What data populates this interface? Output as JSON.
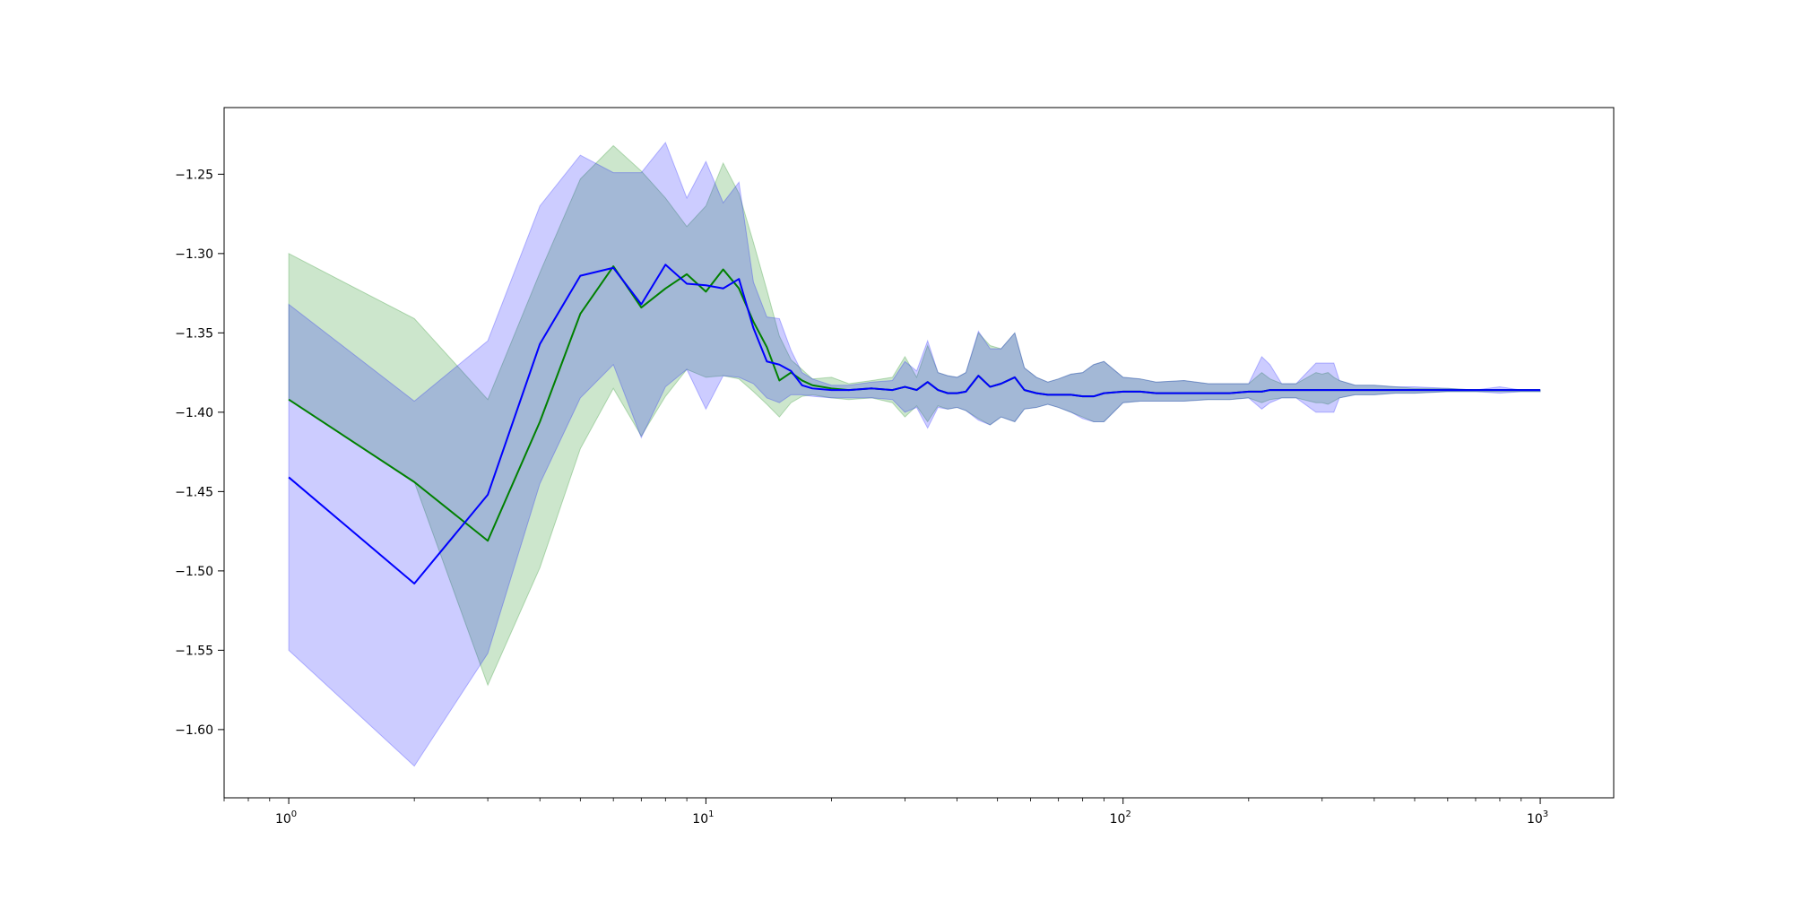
{
  "chart_data": {
    "type": "line",
    "title": "",
    "xlabel": "",
    "ylabel": "",
    "xscale": "log",
    "xlim": [
      0.7,
      1500
    ],
    "ylim": [
      -1.643,
      -1.208
    ],
    "grid": false,
    "legend": "none",
    "x_ticks": [
      {
        "value": 1,
        "base": "10",
        "exp": "0"
      },
      {
        "value": 10,
        "base": "10",
        "exp": "1"
      },
      {
        "value": 100,
        "base": "10",
        "exp": "2"
      },
      {
        "value": 1000,
        "base": "10",
        "exp": "3"
      }
    ],
    "y_ticks": [
      {
        "value": -1.25,
        "label": "−1.25"
      },
      {
        "value": -1.3,
        "label": "−1.30"
      },
      {
        "value": -1.35,
        "label": "−1.35"
      },
      {
        "value": -1.4,
        "label": "−1.40"
      },
      {
        "value": -1.45,
        "label": "−1.45"
      },
      {
        "value": -1.5,
        "label": "−1.50"
      },
      {
        "value": -1.55,
        "label": "−1.55"
      },
      {
        "value": -1.6,
        "label": "−1.60"
      }
    ],
    "series": [
      {
        "color": "#008000",
        "band_color": "#008000",
        "band_opacity": 0.2,
        "x": [
          1,
          2,
          3,
          4,
          5,
          6,
          7,
          8,
          9,
          10,
          11,
          12,
          13,
          14,
          15,
          16,
          17,
          18,
          20,
          22,
          25,
          28,
          30,
          32,
          34,
          36,
          38,
          40,
          42,
          45,
          48,
          51,
          55,
          58,
          62,
          66,
          70,
          75,
          80,
          85,
          90,
          100,
          110,
          120,
          140,
          160,
          180,
          200,
          215,
          225,
          240,
          260,
          290,
          300,
          310,
          320,
          330,
          360,
          400,
          450,
          500,
          600,
          700,
          800,
          900,
          1000
        ],
        "y": [
          -1.392,
          -1.444,
          -1.481,
          -1.406,
          -1.338,
          -1.308,
          -1.334,
          -1.322,
          -1.313,
          -1.324,
          -1.31,
          -1.322,
          -1.343,
          -1.359,
          -1.38,
          -1.375,
          -1.38,
          -1.383,
          -1.385,
          -1.386,
          -1.385,
          -1.386,
          -1.384,
          -1.386,
          -1.381,
          -1.386,
          -1.388,
          -1.388,
          -1.387,
          -1.377,
          -1.384,
          -1.382,
          -1.378,
          -1.386,
          -1.388,
          -1.389,
          -1.389,
          -1.389,
          -1.39,
          -1.39,
          -1.388,
          -1.387,
          -1.387,
          -1.388,
          -1.388,
          -1.388,
          -1.388,
          -1.387,
          -1.387,
          -1.386,
          -1.386,
          -1.386,
          -1.386,
          -1.386,
          -1.386,
          -1.386,
          -1.386,
          -1.386,
          -1.386,
          -1.386,
          -1.386,
          -1.386,
          -1.386,
          -1.386,
          -1.386,
          -1.386
        ],
        "upper": [
          -1.3,
          -1.341,
          -1.392,
          -1.312,
          -1.253,
          -1.232,
          -1.248,
          -1.265,
          -1.283,
          -1.27,
          -1.243,
          -1.262,
          -1.293,
          -1.323,
          -1.352,
          -1.367,
          -1.373,
          -1.379,
          -1.378,
          -1.382,
          -1.38,
          -1.378,
          -1.365,
          -1.378,
          -1.358,
          -1.375,
          -1.377,
          -1.378,
          -1.375,
          -1.35,
          -1.358,
          -1.36,
          -1.35,
          -1.372,
          -1.378,
          -1.381,
          -1.379,
          -1.376,
          -1.375,
          -1.37,
          -1.368,
          -1.378,
          -1.379,
          -1.381,
          -1.38,
          -1.382,
          -1.382,
          -1.382,
          -1.375,
          -1.379,
          -1.382,
          -1.382,
          -1.375,
          -1.376,
          -1.375,
          -1.378,
          -1.38,
          -1.383,
          -1.383,
          -1.384,
          -1.385,
          -1.385,
          -1.386,
          -1.386,
          -1.386,
          -1.386
        ],
        "lower": [
          -1.392,
          -1.444,
          -1.572,
          -1.498,
          -1.423,
          -1.385,
          -1.415,
          -1.39,
          -1.373,
          -1.378,
          -1.377,
          -1.379,
          -1.387,
          -1.395,
          -1.403,
          -1.394,
          -1.39,
          -1.389,
          -1.391,
          -1.392,
          -1.391,
          -1.394,
          -1.403,
          -1.396,
          -1.406,
          -1.396,
          -1.398,
          -1.397,
          -1.399,
          -1.404,
          -1.408,
          -1.403,
          -1.406,
          -1.398,
          -1.397,
          -1.395,
          -1.397,
          -1.4,
          -1.403,
          -1.406,
          -1.406,
          -1.394,
          -1.393,
          -1.393,
          -1.393,
          -1.392,
          -1.392,
          -1.391,
          -1.394,
          -1.392,
          -1.391,
          -1.391,
          -1.394,
          -1.394,
          -1.395,
          -1.393,
          -1.391,
          -1.389,
          -1.389,
          -1.388,
          -1.388,
          -1.387,
          -1.387,
          -1.387,
          -1.387,
          -1.387
        ]
      },
      {
        "color": "#0000ff",
        "band_color": "#0000ff",
        "band_opacity": 0.2,
        "x": [
          1,
          2,
          3,
          4,
          5,
          6,
          7,
          8,
          9,
          10,
          11,
          12,
          13,
          14,
          15,
          16,
          17,
          18,
          20,
          22,
          25,
          28,
          30,
          32,
          34,
          36,
          38,
          40,
          42,
          45,
          48,
          51,
          55,
          58,
          62,
          66,
          70,
          75,
          80,
          85,
          90,
          100,
          110,
          120,
          140,
          160,
          180,
          200,
          215,
          225,
          240,
          260,
          290,
          300,
          310,
          320,
          330,
          360,
          400,
          450,
          500,
          600,
          700,
          800,
          900,
          1000
        ],
        "y": [
          -1.441,
          -1.508,
          -1.452,
          -1.357,
          -1.314,
          -1.309,
          -1.332,
          -1.307,
          -1.319,
          -1.32,
          -1.322,
          -1.316,
          -1.347,
          -1.368,
          -1.37,
          -1.374,
          -1.383,
          -1.385,
          -1.386,
          -1.386,
          -1.385,
          -1.386,
          -1.384,
          -1.386,
          -1.381,
          -1.386,
          -1.388,
          -1.388,
          -1.387,
          -1.377,
          -1.384,
          -1.382,
          -1.378,
          -1.386,
          -1.388,
          -1.389,
          -1.389,
          -1.389,
          -1.39,
          -1.39,
          -1.388,
          -1.387,
          -1.387,
          -1.388,
          -1.388,
          -1.388,
          -1.388,
          -1.387,
          -1.387,
          -1.386,
          -1.386,
          -1.386,
          -1.386,
          -1.386,
          -1.386,
          -1.386,
          -1.386,
          -1.386,
          -1.386,
          -1.386,
          -1.386,
          -1.386,
          -1.386,
          -1.386,
          -1.386,
          -1.386
        ],
        "upper": [
          -1.332,
          -1.393,
          -1.355,
          -1.27,
          -1.238,
          -1.249,
          -1.249,
          -1.23,
          -1.265,
          -1.242,
          -1.268,
          -1.255,
          -1.318,
          -1.34,
          -1.341,
          -1.361,
          -1.375,
          -1.379,
          -1.383,
          -1.383,
          -1.381,
          -1.38,
          -1.368,
          -1.374,
          -1.355,
          -1.375,
          -1.377,
          -1.378,
          -1.375,
          -1.349,
          -1.36,
          -1.36,
          -1.35,
          -1.372,
          -1.378,
          -1.381,
          -1.379,
          -1.376,
          -1.375,
          -1.37,
          -1.368,
          -1.378,
          -1.379,
          -1.381,
          -1.38,
          -1.382,
          -1.382,
          -1.382,
          -1.365,
          -1.37,
          -1.382,
          -1.382,
          -1.369,
          -1.369,
          -1.369,
          -1.369,
          -1.38,
          -1.383,
          -1.383,
          -1.384,
          -1.384,
          -1.385,
          -1.386,
          -1.384,
          -1.386,
          -1.386
        ],
        "lower": [
          -1.55,
          -1.623,
          -1.552,
          -1.445,
          -1.391,
          -1.37,
          -1.416,
          -1.384,
          -1.373,
          -1.398,
          -1.377,
          -1.378,
          -1.382,
          -1.391,
          -1.394,
          -1.389,
          -1.389,
          -1.39,
          -1.391,
          -1.391,
          -1.391,
          -1.392,
          -1.4,
          -1.397,
          -1.41,
          -1.397,
          -1.398,
          -1.397,
          -1.399,
          -1.405,
          -1.408,
          -1.403,
          -1.406,
          -1.398,
          -1.397,
          -1.395,
          -1.397,
          -1.4,
          -1.404,
          -1.406,
          -1.406,
          -1.394,
          -1.393,
          -1.393,
          -1.393,
          -1.392,
          -1.392,
          -1.391,
          -1.398,
          -1.394,
          -1.391,
          -1.391,
          -1.4,
          -1.4,
          -1.4,
          -1.4,
          -1.391,
          -1.389,
          -1.389,
          -1.388,
          -1.388,
          -1.387,
          -1.387,
          -1.388,
          -1.387,
          -1.387
        ]
      }
    ]
  }
}
